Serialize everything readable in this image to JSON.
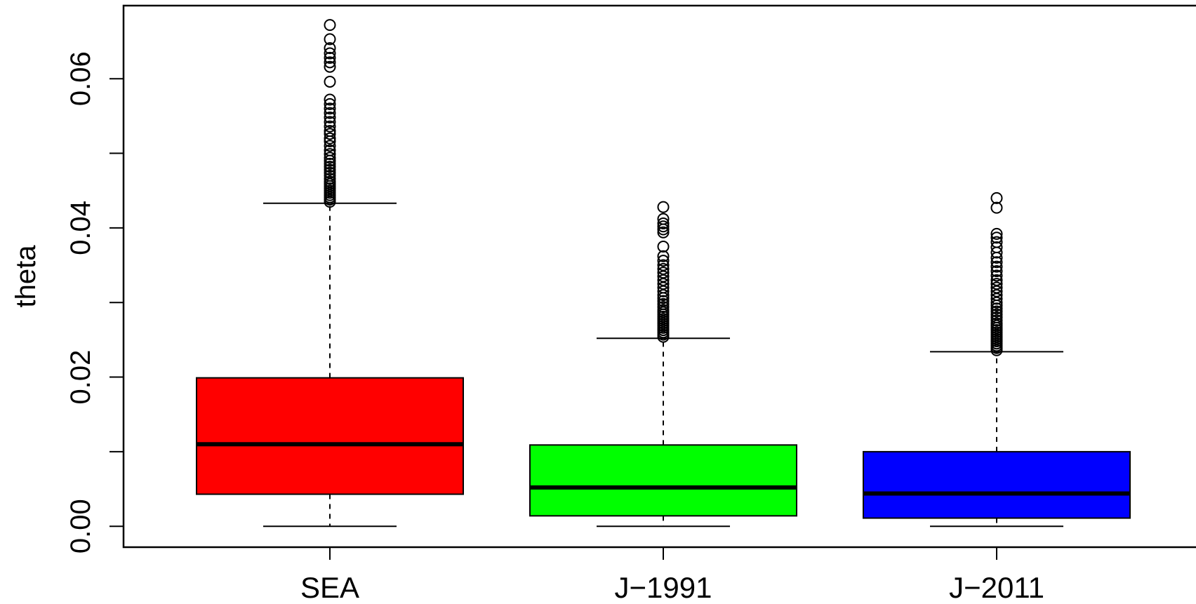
{
  "chart_data": {
    "type": "box",
    "title": "",
    "xlabel": "",
    "ylabel": "theta",
    "ylim": [
      -0.0028,
      0.0698
    ],
    "yticks": [
      0.0,
      0.01,
      0.02,
      0.03,
      0.04,
      0.05,
      0.06
    ],
    "ytick_labels": [
      "0.00",
      "",
      "0.02",
      "",
      "0.04",
      "",
      "0.06"
    ],
    "grid": false,
    "legend": "none",
    "categories": [
      "SEA",
      "J−1991",
      "J−2011"
    ],
    "boxes": [
      {
        "category": "SEA",
        "color": "#ff0000",
        "whisker_low": 0.0,
        "q1": 0.0043,
        "median": 0.011,
        "q3": 0.0199,
        "whisker_high": 0.0433,
        "outliers": [
          0.0435,
          0.0438,
          0.0441,
          0.0444,
          0.0447,
          0.045,
          0.0453,
          0.0456,
          0.0459,
          0.0462,
          0.0466,
          0.047,
          0.0474,
          0.0478,
          0.0482,
          0.0486,
          0.049,
          0.0494,
          0.0499,
          0.0504,
          0.051,
          0.0516,
          0.052,
          0.0526,
          0.053,
          0.0536,
          0.0542,
          0.0548,
          0.0554,
          0.056,
          0.0566,
          0.0572,
          0.0596,
          0.0616,
          0.0622,
          0.0628,
          0.0634,
          0.0641,
          0.0653,
          0.0672
        ]
      },
      {
        "category": "J−1991",
        "color": "#00ff00",
        "whisker_low": 0.0,
        "q1": 0.0014,
        "median": 0.0052,
        "q3": 0.0109,
        "whisker_high": 0.0252,
        "outliers": [
          0.0254,
          0.0257,
          0.026,
          0.0263,
          0.0266,
          0.0269,
          0.0272,
          0.0275,
          0.0278,
          0.0281,
          0.0284,
          0.0287,
          0.029,
          0.0294,
          0.0298,
          0.0302,
          0.0306,
          0.031,
          0.0315,
          0.032,
          0.0325,
          0.033,
          0.0335,
          0.034,
          0.0345,
          0.035,
          0.0356,
          0.0362,
          0.0375,
          0.0394,
          0.0398,
          0.0402,
          0.0406,
          0.0412,
          0.0428
        ]
      },
      {
        "category": "J−2011",
        "color": "#0000ff",
        "whisker_low": 0.0,
        "q1": 0.0011,
        "median": 0.0044,
        "q3": 0.01,
        "whisker_high": 0.0234,
        "outliers": [
          0.0236,
          0.0239,
          0.0242,
          0.0245,
          0.0248,
          0.0251,
          0.0254,
          0.0257,
          0.026,
          0.0263,
          0.0266,
          0.0269,
          0.0272,
          0.0276,
          0.028,
          0.0284,
          0.0288,
          0.0292,
          0.0296,
          0.03,
          0.0305,
          0.031,
          0.0315,
          0.032,
          0.0325,
          0.033,
          0.0336,
          0.0342,
          0.0348,
          0.0354,
          0.036,
          0.0367,
          0.0374,
          0.0381,
          0.0387,
          0.0392,
          0.0427,
          0.044
        ]
      }
    ]
  }
}
